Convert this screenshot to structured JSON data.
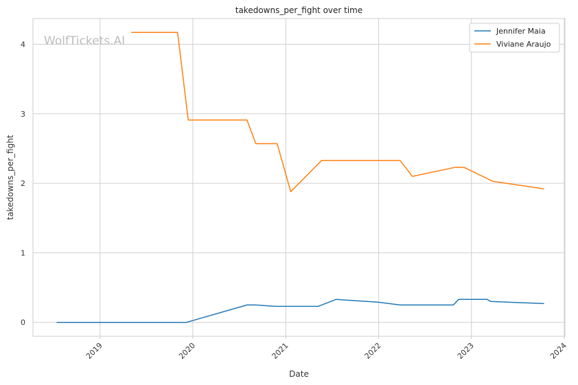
{
  "chart_data": {
    "type": "line",
    "title": "takedowns_per_fight over time",
    "xlabel": "Date",
    "ylabel": "takedowns_per_fight",
    "watermark": "WolfTickets.AI",
    "xlim": [
      "2018-04-12",
      "2024-01-04"
    ],
    "ylim": [
      -0.2,
      4.37
    ],
    "x_ticks": [
      {
        "date": "2019-01-01",
        "label": "2019"
      },
      {
        "date": "2020-01-01",
        "label": "2020"
      },
      {
        "date": "2021-01-01",
        "label": "2021"
      },
      {
        "date": "2022-01-01",
        "label": "2022"
      },
      {
        "date": "2023-01-01",
        "label": "2023"
      },
      {
        "date": "2024-01-01",
        "label": "2024"
      }
    ],
    "y_ticks": [
      {
        "value": 0,
        "label": "0"
      },
      {
        "value": 1,
        "label": "1"
      },
      {
        "value": 2,
        "label": "2"
      },
      {
        "value": 3,
        "label": "3"
      },
      {
        "value": 4,
        "label": "4"
      }
    ],
    "grid": true,
    "legend_position": "top-right",
    "series": [
      {
        "name": "Jennifer Maia",
        "color": "#1f77b4",
        "points": [
          {
            "x": "2018-07-14",
            "y": 0
          },
          {
            "x": "2019-12-07",
            "y": 0
          },
          {
            "x": "2020-08-01",
            "y": 0.25
          },
          {
            "x": "2020-09-05",
            "y": 0.25
          },
          {
            "x": "2020-11-21",
            "y": 0.23
          },
          {
            "x": "2021-05-08",
            "y": 0.23
          },
          {
            "x": "2021-07-17",
            "y": 0.33
          },
          {
            "x": "2022-01-01",
            "y": 0.29
          },
          {
            "x": "2022-03-26",
            "y": 0.25
          },
          {
            "x": "2022-10-22",
            "y": 0.25
          },
          {
            "x": "2022-11-12",
            "y": 0.33
          },
          {
            "x": "2023-03-04",
            "y": 0.33
          },
          {
            "x": "2023-03-18",
            "y": 0.3
          },
          {
            "x": "2023-10-14",
            "y": 0.27
          }
        ]
      },
      {
        "name": "Viviane Araujo",
        "color": "#ff7f0e",
        "points": [
          {
            "x": "2019-05-04",
            "y": 4.17
          },
          {
            "x": "2019-11-02",
            "y": 4.17
          },
          {
            "x": "2019-12-14",
            "y": 2.91
          },
          {
            "x": "2020-08-01",
            "y": 2.91
          },
          {
            "x": "2020-09-05",
            "y": 2.57
          },
          {
            "x": "2020-11-28",
            "y": 2.57
          },
          {
            "x": "2021-01-20",
            "y": 1.88
          },
          {
            "x": "2021-05-22",
            "y": 2.33
          },
          {
            "x": "2022-03-26",
            "y": 2.33
          },
          {
            "x": "2022-05-14",
            "y": 2.1
          },
          {
            "x": "2022-10-29",
            "y": 2.23
          },
          {
            "x": "2022-12-03",
            "y": 2.23
          },
          {
            "x": "2023-03-25",
            "y": 2.03
          },
          {
            "x": "2023-10-14",
            "y": 1.92
          }
        ]
      }
    ]
  }
}
